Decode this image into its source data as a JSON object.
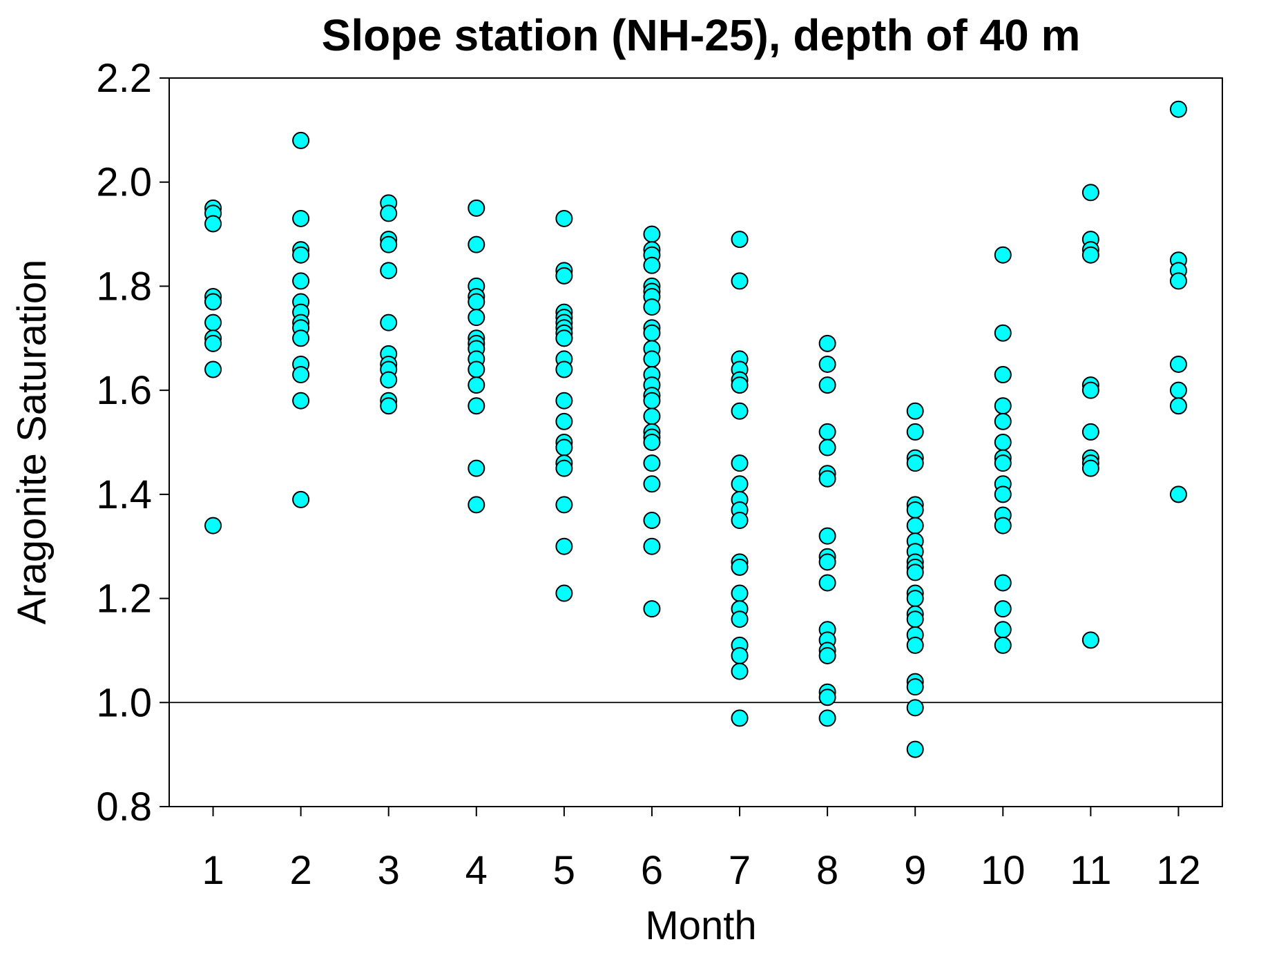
{
  "chart_data": {
    "type": "scatter",
    "title": "Slope station (NH-25), depth of 40 m",
    "xlabel": "Month",
    "ylabel": "Aragonite Saturation",
    "xlim": [
      0.5,
      12.5
    ],
    "ylim": [
      0.8,
      2.2
    ],
    "x_ticks": [
      1,
      2,
      3,
      4,
      5,
      6,
      7,
      8,
      9,
      10,
      11,
      12
    ],
    "y_ticks": [
      "0.8",
      "1.0",
      "1.2",
      "1.4",
      "1.6",
      "1.8",
      "2.0",
      "2.2"
    ],
    "reference_line": 1.0,
    "grid": false,
    "marker_color": "#00ffff",
    "marker_edge_color": "#000000",
    "series": [
      {
        "points": [
          {
            "month": 1,
            "values": [
              1.95,
              1.94,
              1.92,
              1.78,
              1.77,
              1.77,
              1.73,
              1.7,
              1.69,
              1.64,
              1.34
            ]
          },
          {
            "month": 2,
            "values": [
              2.08,
              1.93,
              1.87,
              1.86,
              1.81,
              1.77,
              1.75,
              1.73,
              1.72,
              1.7,
              1.65,
              1.63,
              1.58,
              1.39
            ]
          },
          {
            "month": 3,
            "values": [
              1.96,
              1.94,
              1.89,
              1.88,
              1.83,
              1.73,
              1.67,
              1.65,
              1.64,
              1.62,
              1.58,
              1.57
            ]
          },
          {
            "month": 4,
            "values": [
              1.95,
              1.88,
              1.8,
              1.78,
              1.77,
              1.74,
              1.7,
              1.69,
              1.68,
              1.66,
              1.64,
              1.61,
              1.57,
              1.45,
              1.38
            ]
          },
          {
            "month": 5,
            "values": [
              1.93,
              1.83,
              1.82,
              1.75,
              1.74,
              1.73,
              1.72,
              1.71,
              1.7,
              1.7,
              1.66,
              1.64,
              1.58,
              1.54,
              1.5,
              1.49,
              1.46,
              1.45,
              1.38,
              1.3,
              1.21
            ]
          },
          {
            "month": 6,
            "values": [
              1.9,
              1.87,
              1.86,
              1.84,
              1.8,
              1.79,
              1.78,
              1.76,
              1.72,
              1.71,
              1.68,
              1.66,
              1.63,
              1.61,
              1.59,
              1.58,
              1.55,
              1.52,
              1.51,
              1.5,
              1.46,
              1.42,
              1.35,
              1.3,
              1.18
            ]
          },
          {
            "month": 7,
            "values": [
              1.89,
              1.81,
              1.66,
              1.64,
              1.62,
              1.61,
              1.56,
              1.46,
              1.42,
              1.39,
              1.37,
              1.35,
              1.27,
              1.26,
              1.21,
              1.18,
              1.16,
              1.11,
              1.09,
              1.06,
              0.97
            ]
          },
          {
            "month": 8,
            "values": [
              1.69,
              1.65,
              1.61,
              1.52,
              1.49,
              1.44,
              1.43,
              1.32,
              1.28,
              1.27,
              1.23,
              1.14,
              1.12,
              1.1,
              1.09,
              1.02,
              1.01,
              0.97
            ]
          },
          {
            "month": 9,
            "values": [
              1.56,
              1.52,
              1.47,
              1.46,
              1.38,
              1.37,
              1.34,
              1.31,
              1.29,
              1.27,
              1.26,
              1.25,
              1.21,
              1.2,
              1.17,
              1.16,
              1.13,
              1.11,
              1.04,
              1.03,
              0.99,
              0.91
            ]
          },
          {
            "month": 10,
            "values": [
              1.86,
              1.71,
              1.63,
              1.63,
              1.57,
              1.54,
              1.5,
              1.47,
              1.46,
              1.42,
              1.4,
              1.36,
              1.34,
              1.23,
              1.18,
              1.14,
              1.11
            ]
          },
          {
            "month": 11,
            "values": [
              1.98,
              1.89,
              1.87,
              1.86,
              1.61,
              1.6,
              1.52,
              1.47,
              1.46,
              1.45,
              1.12
            ]
          },
          {
            "month": 12,
            "values": [
              2.14,
              1.85,
              1.83,
              1.81,
              1.65,
              1.6,
              1.57,
              1.4
            ]
          }
        ]
      }
    ]
  }
}
